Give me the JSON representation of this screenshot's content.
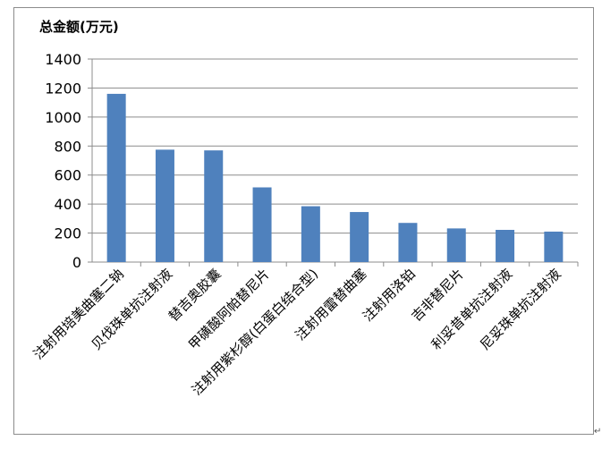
{
  "chart_data": {
    "type": "bar",
    "title": "",
    "ylabel": "总金额(万元)",
    "xlabel": "",
    "categories": [
      "注射用培美曲塞二钠",
      "贝伐珠单抗注射液",
      "替吉奥胶囊",
      "甲磺酸阿帕替尼片",
      "注射用紫杉醇(白蛋白结合型)",
      "注射用雷替曲塞",
      "注射用洛铂",
      "吉非替尼片",
      "利妥昔单抗注射液",
      "尼妥珠单抗注射液"
    ],
    "values": [
      1160,
      775,
      770,
      515,
      385,
      345,
      270,
      232,
      222,
      210
    ],
    "ylim": [
      0,
      1400
    ],
    "yticks": [
      "0",
      "200",
      "400",
      "600",
      "800",
      "1000",
      "1200",
      "1400"
    ],
    "grid": true,
    "legend": "none",
    "bar_color": "#4f81bd"
  },
  "return_mark": "↵"
}
